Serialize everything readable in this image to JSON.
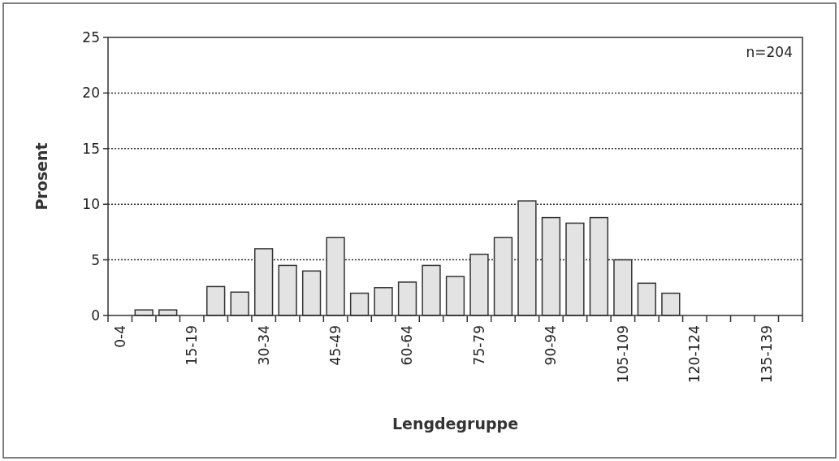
{
  "chart_data": {
    "type": "bar",
    "xlabel": "Lengdegruppe",
    "ylabel": "Prosent",
    "categories": [
      "0-4",
      null,
      null,
      "15-19",
      null,
      null,
      "30-34",
      null,
      null,
      "45-49",
      null,
      null,
      "60-64",
      null,
      null,
      "75-79",
      null,
      null,
      "90-94",
      null,
      null,
      "105-109",
      null,
      null,
      "120-124",
      null,
      null,
      "135-139",
      null
    ],
    "values": [
      0,
      0.5,
      0.5,
      0,
      2.6,
      2.1,
      6,
      4.5,
      4,
      7,
      2,
      2.5,
      3,
      4.5,
      3.5,
      5.5,
      7,
      10.3,
      8.8,
      8.3,
      8.8,
      5,
      2.9,
      2,
      0,
      0,
      0,
      0,
      0
    ],
    "color": "#e3e3e3",
    "ylim": [
      0,
      25
    ],
    "yticks": [
      0,
      5,
      10,
      15,
      20,
      25
    ],
    "grid": "y",
    "annotations": [
      "n=204"
    ]
  }
}
